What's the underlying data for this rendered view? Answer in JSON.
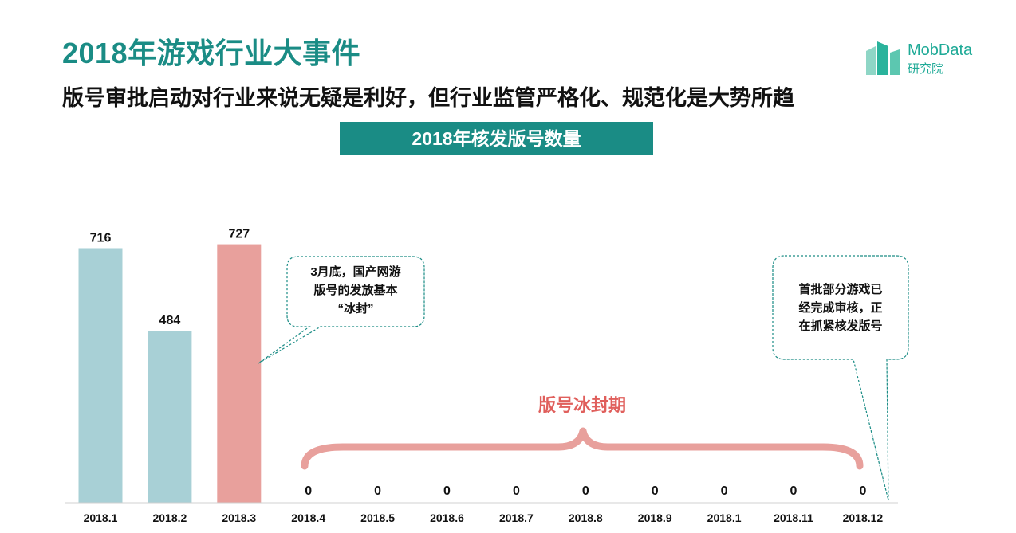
{
  "header": {
    "title": "2018年游戏行业大事件",
    "subtitle": "版号审批启动对行业来说无疑是利好，但行业监管严格化、规范化是大势所趋"
  },
  "logo": {
    "name": "MobData",
    "sub": "研究院",
    "icon": "building-bars-icon"
  },
  "chart_data": {
    "type": "bar",
    "title": "2018年核发版号数量",
    "categories": [
      "2018.1",
      "2018.2",
      "2018.3",
      "2018.4",
      "2018.5",
      "2018.6",
      "2018.7",
      "2018.8",
      "2018.9",
      "2018.1",
      "2018.11",
      "2018.12"
    ],
    "values": [
      716,
      484,
      727,
      0,
      0,
      0,
      0,
      0,
      0,
      0,
      0,
      0
    ],
    "highlight_index": 2,
    "xlabel": "",
    "ylabel": "",
    "ylim": [
      0,
      800
    ],
    "grid": false,
    "legend": "none",
    "colors": {
      "bar": "#a8d0d6",
      "highlight": "#e8a09c",
      "brace": "#e8a09c",
      "freeze_label": "#e05f5c",
      "callout_border": "#1a8c85"
    },
    "annotations": {
      "freeze_period": "版号冰封期",
      "callout_march": [
        "3月底，国产网游",
        "版号的发放基本",
        "“冰封”"
      ],
      "callout_december": [
        "首批部分游戏已",
        "经完成审核，正",
        "在抓紧核发版号"
      ]
    }
  }
}
